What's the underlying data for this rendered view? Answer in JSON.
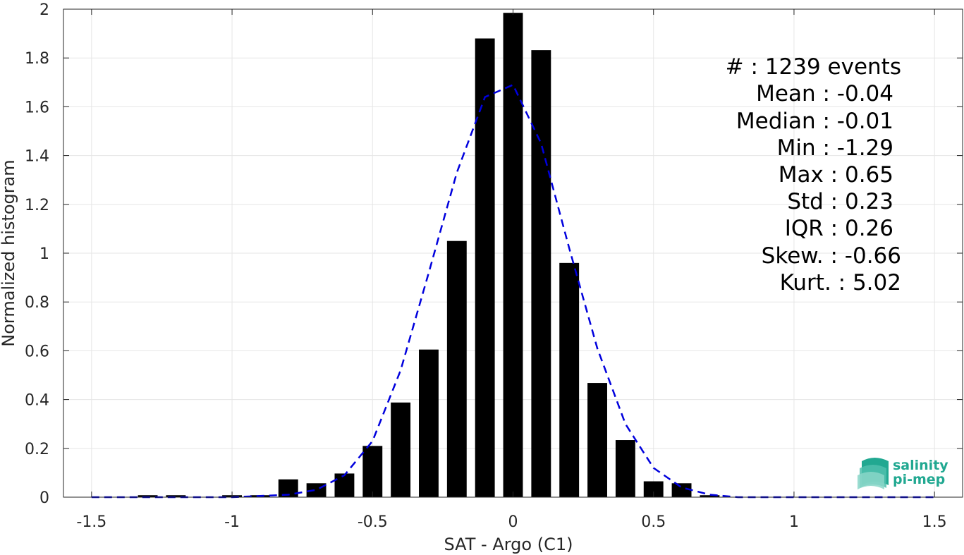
{
  "chart_data": {
    "type": "bar",
    "xlabel": "SAT - Argo (C1)",
    "ylabel": "Normalized histogram",
    "xlim": [
      -1.6,
      1.6
    ],
    "ylim": [
      0,
      2
    ],
    "xticks": [
      -1.5,
      -1,
      -0.5,
      0,
      0.5,
      1,
      1.5
    ],
    "xtick_labels": [
      "-1.5",
      "-1",
      "-0.5",
      "0",
      "0.5",
      "1",
      "1.5"
    ],
    "yticks": [
      0,
      0.2,
      0.4,
      0.6,
      0.8,
      1,
      1.2,
      1.4,
      1.6,
      1.8,
      2
    ],
    "ytick_labels": [
      "0",
      "0.2",
      "0.4",
      "0.6",
      "0.8",
      "1",
      "1.2",
      "1.4",
      "1.6",
      "1.8",
      "2"
    ],
    "grid": true,
    "bar_width": 0.07,
    "bar_color": "#000000",
    "bars": {
      "x": [
        -1.5,
        -1.4,
        -1.3,
        -1.2,
        -1.1,
        -1.0,
        -0.9,
        -0.8,
        -0.7,
        -0.6,
        -0.5,
        -0.4,
        -0.3,
        -0.2,
        -0.1,
        0.0,
        0.1,
        0.2,
        0.3,
        0.4,
        0.5,
        0.6,
        0.7,
        0.8,
        0.9,
        1.0,
        1.1,
        1.2,
        1.3,
        1.4,
        1.5
      ],
      "values": [
        0,
        0,
        0.008,
        0.008,
        0,
        0.008,
        0.008,
        0.073,
        0.057,
        0.097,
        0.21,
        0.388,
        0.605,
        1.05,
        1.88,
        1.985,
        1.832,
        0.96,
        0.468,
        0.234,
        0.065,
        0.057,
        0.008,
        0,
        0,
        0,
        0,
        0,
        0,
        0,
        0
      ]
    },
    "fit": {
      "style": "dashed",
      "color": "#0000dd",
      "x": [
        -1.5,
        -1.4,
        -1.3,
        -1.2,
        -1.1,
        -1.0,
        -0.9,
        -0.8,
        -0.7,
        -0.6,
        -0.5,
        -0.4,
        -0.3,
        -0.2,
        -0.1,
        0.0,
        0.1,
        0.2,
        0.3,
        0.4,
        0.5,
        0.6,
        0.7,
        0.8,
        0.9,
        1.0,
        1.1,
        1.2,
        1.3,
        1.4,
        1.5
      ],
      "values": [
        0,
        0,
        0,
        0,
        0,
        0,
        0.005,
        0.01,
        0.03,
        0.09,
        0.23,
        0.52,
        0.92,
        1.33,
        1.64,
        1.69,
        1.45,
        1.02,
        0.61,
        0.3,
        0.12,
        0.04,
        0.01,
        0,
        0,
        0,
        0,
        0,
        0,
        0,
        0
      ]
    }
  },
  "stats": [
    {
      "label": "#  : 1239 events"
    },
    {
      "label": "Mean : -0.04"
    },
    {
      "label": "Median : -0.01"
    },
    {
      "label": "Min : -1.29"
    },
    {
      "label": "Max : 0.65"
    },
    {
      "label": "Std : 0.23"
    },
    {
      "label": "IQR : 0.26"
    },
    {
      "label": "Skew. : -0.66"
    },
    {
      "label": "Kurt. : 5.02"
    }
  ],
  "logo": {
    "line1": "salinity",
    "line2": "pi-mep",
    "color": "#21a891"
  }
}
